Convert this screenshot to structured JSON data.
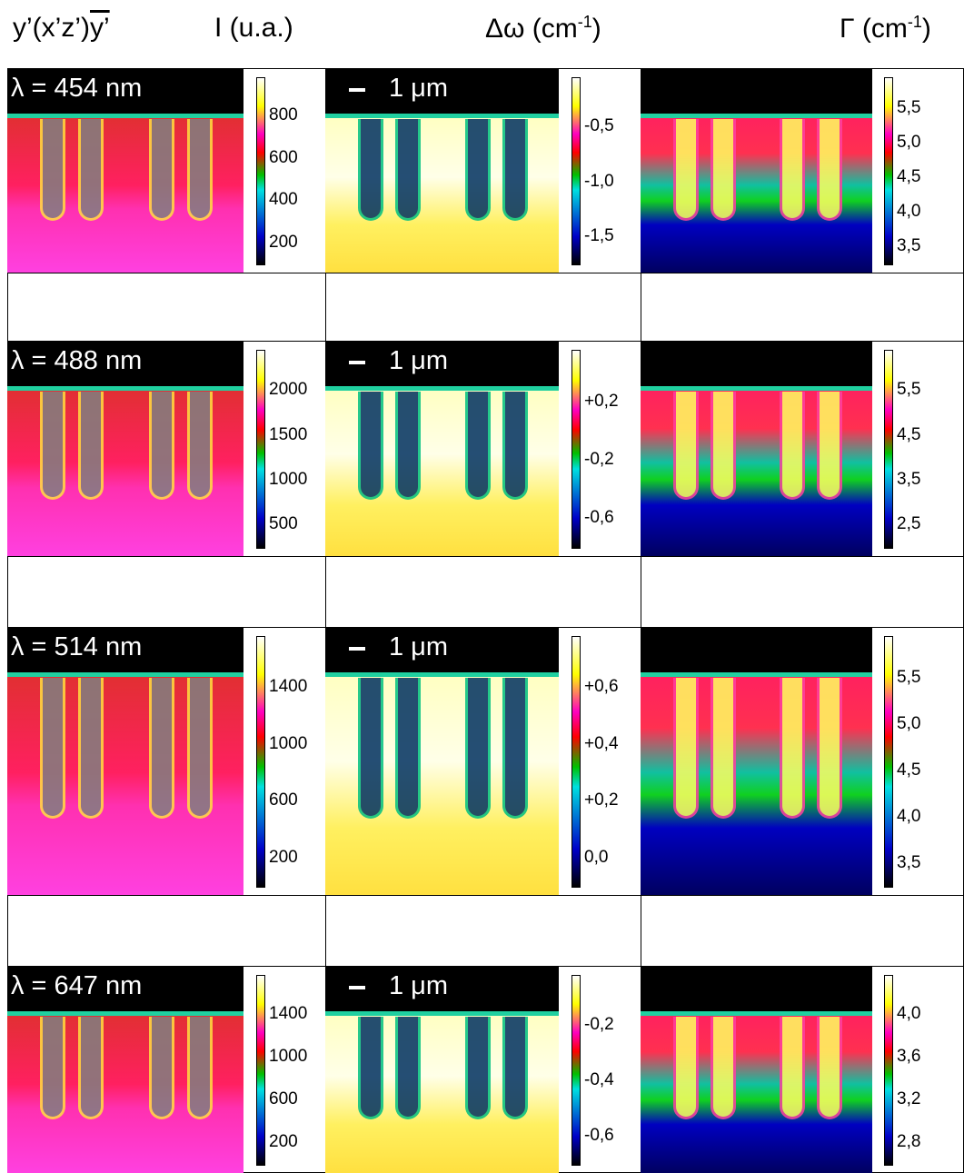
{
  "header": {
    "geometry": "y’(x’z’)",
    "geometry_overlined": "y’",
    "intensity": "I (u.a.)",
    "shift": "Δω (cm",
    "shift_exp": "-1",
    "shift_close": ")",
    "width": "Γ (cm",
    "width_exp": "-1",
    "width_close": ")"
  },
  "rows": [
    {
      "wavelength": "λ = 454 nm",
      "scale": "1 μm",
      "intensity_ticks": [
        "800",
        "600",
        "400",
        "200"
      ],
      "shift_ticks": [
        "-0,5",
        "-1,0",
        "-1,5"
      ],
      "width_ticks": [
        "5,5",
        "5,0",
        "4,5",
        "4,0",
        "3,5"
      ]
    },
    {
      "wavelength": "λ = 488 nm",
      "scale": "1 μm",
      "intensity_ticks": [
        "2000",
        "1500",
        "1000",
        "500"
      ],
      "shift_ticks": [
        "+0,2",
        "-0,2",
        "-0,6"
      ],
      "width_ticks": [
        "5,5",
        "4,5",
        "3,5",
        "2,5"
      ]
    },
    {
      "wavelength": "λ = 514 nm",
      "scale": "1 μm",
      "intensity_ticks": [
        "1400",
        "1000",
        "600",
        "200"
      ],
      "shift_ticks": [
        "+0,6",
        "+0,4",
        "+0,2",
        "0,0"
      ],
      "width_ticks": [
        "5,5",
        "5,0",
        "4,5",
        "4,0",
        "3,5"
      ]
    },
    {
      "wavelength": "λ = 647 nm",
      "scale": "1 μm",
      "intensity_ticks": [
        "1400",
        "1000",
        "600",
        "200"
      ],
      "shift_ticks": [
        "-0,2",
        "-0,4",
        "-0,6"
      ],
      "width_ticks": [
        "4,0",
        "3,6",
        "3,2",
        "2,8"
      ]
    }
  ]
}
